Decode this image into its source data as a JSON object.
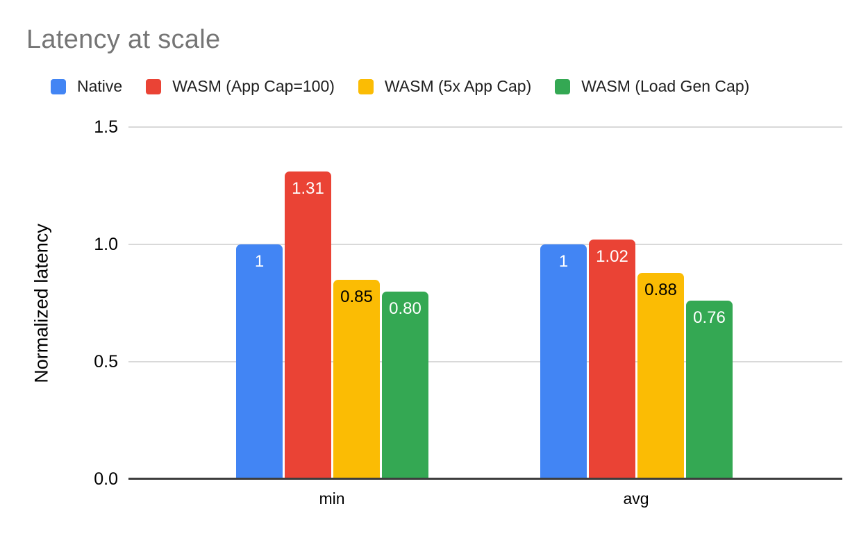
{
  "chart_data": {
    "type": "bar",
    "title": "Latency at scale",
    "ylabel": "Normalized latency",
    "xlabel": "",
    "categories": [
      "min",
      "avg"
    ],
    "series": [
      {
        "name": "Native",
        "color": "#4285F4",
        "label_color": "#ffffff",
        "values": [
          1.0,
          1.0
        ],
        "labels": [
          "1",
          "1"
        ]
      },
      {
        "name": "WASM (App Cap=100)",
        "color": "#EA4335",
        "label_color": "#ffffff",
        "values": [
          1.31,
          1.02
        ],
        "labels": [
          "1.31",
          "1.02"
        ]
      },
      {
        "name": "WASM (5x App Cap)",
        "color": "#FBBC04",
        "label_color": "#000000",
        "values": [
          0.85,
          0.88
        ],
        "labels": [
          "0.85",
          "0.88"
        ]
      },
      {
        "name": "WASM (Load Gen Cap)",
        "color": "#34A853",
        "label_color": "#ffffff",
        "values": [
          0.8,
          0.76
        ],
        "labels": [
          "0.80",
          "0.76"
        ]
      }
    ],
    "ylim": [
      0,
      1.5
    ],
    "yticks": [
      0,
      0.5,
      1,
      1.5
    ],
    "ytick_labels": [
      "0.0",
      "0.5",
      "1.0",
      "1.5"
    ],
    "grid": true,
    "legend_position": "top",
    "colors": {
      "title": "#757575",
      "gridline": "#d9d9d9",
      "axis_line": "#3d3d3d",
      "text": "#000000",
      "background": "#ffffff"
    }
  }
}
